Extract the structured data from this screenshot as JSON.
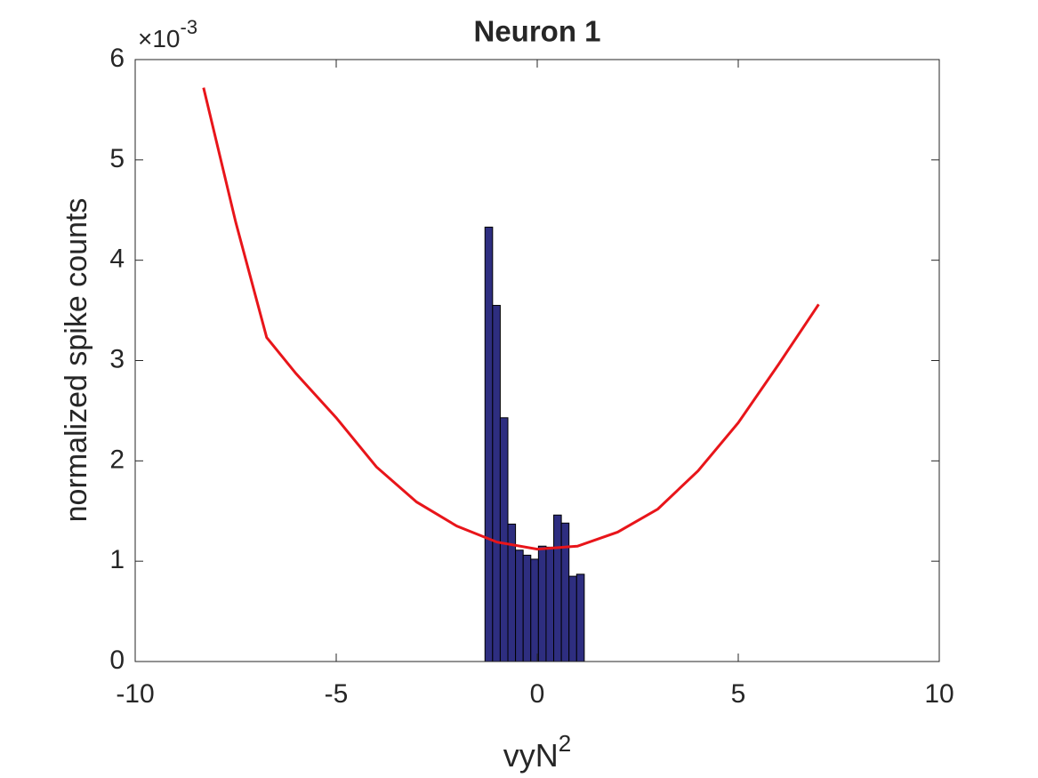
{
  "chart_data": {
    "type": "histogram",
    "title": "Neuron 1",
    "xlabel": "vyN",
    "xlabel_superscript": "2",
    "ylabel": "normalized spike counts",
    "y_multiplier": "×10",
    "y_exponent": "-3",
    "bins": [
      -1.3,
      -1.11,
      -0.92,
      -0.73,
      -0.54,
      -0.35,
      -0.16,
      0.03,
      0.22,
      0.41,
      0.6,
      0.79,
      0.98,
      1.17
    ],
    "counts": [
      4.33,
      3.55,
      2.43,
      1.37,
      1.11,
      1.06,
      1.02,
      1.15,
      1.14,
      1.46,
      1.38,
      0.85,
      0.87
    ],
    "bar_color": "#2e2e80",
    "edge_color": "#000000",
    "curve": {
      "type": "line",
      "color": "#e8151a",
      "x": [
        -8.3,
        -7.5,
        -6.73,
        -6,
        -5,
        -4,
        -3,
        -2,
        -1,
        0,
        1,
        2,
        3,
        4,
        5,
        6,
        7
      ],
      "values": [
        5.72,
        4.38,
        3.23,
        2.87,
        2.43,
        1.94,
        1.59,
        1.35,
        1.19,
        1.12,
        1.15,
        1.29,
        1.52,
        1.9,
        2.38,
        2.96,
        3.56
      ]
    },
    "xlim": [
      -10,
      10
    ],
    "ylim": [
      0,
      6
    ],
    "xticks": [
      -10,
      -5,
      0,
      5,
      10
    ],
    "yticks": [
      0,
      1,
      2,
      3,
      4,
      5,
      6
    ]
  }
}
